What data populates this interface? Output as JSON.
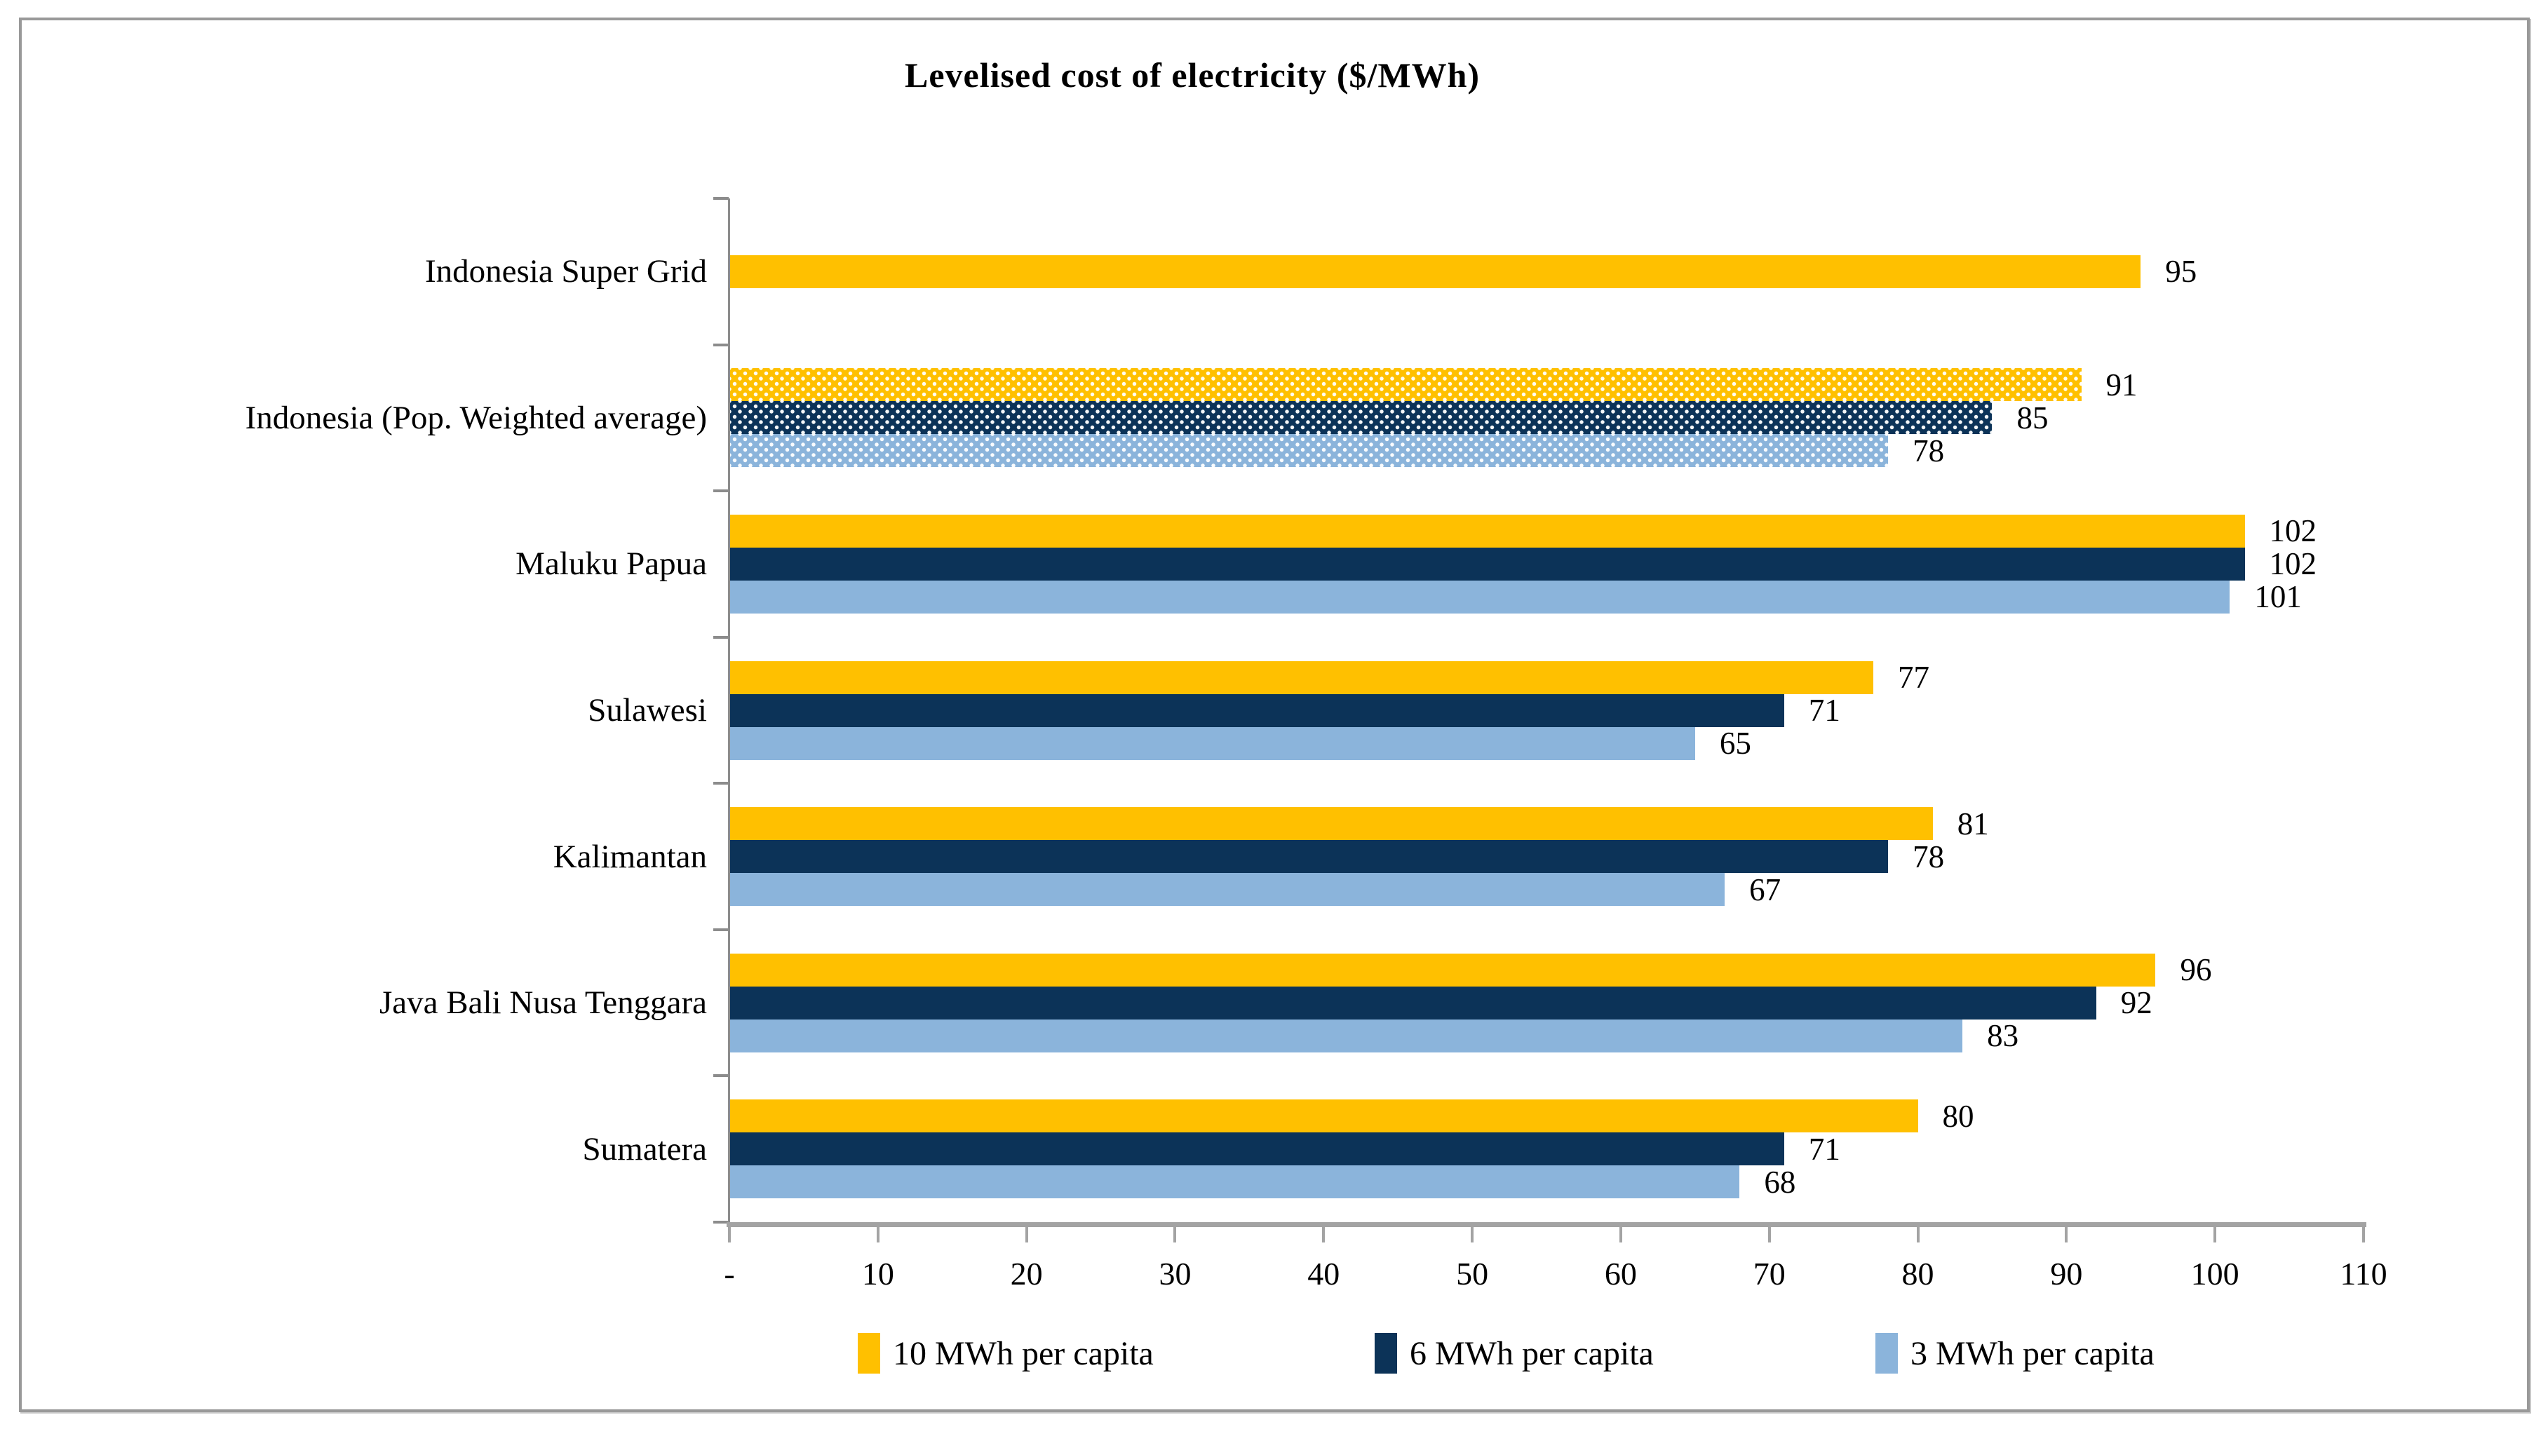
{
  "chart_data": {
    "type": "bar",
    "orientation": "horizontal",
    "title": "Levelised cost of electricity  ($/MWh)",
    "categories": [
      "Indonesia Super Grid",
      "Indonesia (Pop. Weighted average)",
      "Maluku Papua",
      "Sulawesi",
      "Kalimantan",
      "Java Bali Nusa Tenggara",
      "Sumatera"
    ],
    "series": [
      {
        "name": "10 MWh per capita",
        "color": "#FFC000",
        "values": [
          95,
          91,
          102,
          77,
          81,
          96,
          80
        ]
      },
      {
        "name": "6 MWh per capita",
        "color": "#0C3358",
        "values": [
          null,
          85,
          102,
          71,
          78,
          92,
          71
        ]
      },
      {
        "name": "3 MWh per capita",
        "color": "#8BB4DB",
        "values": [
          null,
          78,
          101,
          65,
          67,
          83,
          68
        ]
      }
    ],
    "pattern_fill_category_index": 1,
    "pattern_fill_style": "white dots",
    "xlim": [
      0,
      110
    ],
    "x_tick_labels": [
      "-",
      "10",
      "20",
      "30",
      "40",
      "50",
      "60",
      "70",
      "80",
      "90",
      "100",
      "110"
    ],
    "value_labels_shown": true,
    "grid": false,
    "legend_position": "bottom"
  },
  "legend": {
    "items": [
      {
        "label": "10 MWh per capita",
        "color": "#FFC000"
      },
      {
        "label": "6 MWh per capita",
        "color": "#0C3358"
      },
      {
        "label": "3 MWh per capita",
        "color": "#8BB4DB"
      }
    ]
  },
  "colors": {
    "background": "#FFFFFF",
    "frame_border": "#999999",
    "axis_line": "#A3A3A3",
    "category_tick": "#8C8C8C",
    "text": "#000000"
  }
}
